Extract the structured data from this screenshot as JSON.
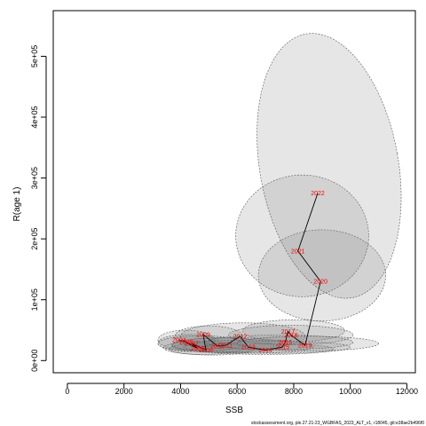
{
  "chart_data": {
    "type": "scatter",
    "title": "",
    "xlabel": "SSB",
    "ylabel": "R(age 1)",
    "xlim": [
      -500,
      12300
    ],
    "ylim": [
      -20000,
      575000
    ],
    "x_ticks": [
      0,
      2000,
      4000,
      6000,
      8000,
      10000,
      12000
    ],
    "x_tick_labels": [
      "0",
      "2000",
      "4000",
      "6000",
      "8000",
      "10000",
      "12000"
    ],
    "y_ticks": [
      0,
      100000,
      200000,
      300000,
      400000,
      500000
    ],
    "y_tick_labels": [
      "0e+00",
      "1e+05",
      "2e+05",
      "3e+05",
      "4e+05",
      "5e+05"
    ],
    "grid": false,
    "line_color": "#000000",
    "label_color": "#ff0000",
    "ellipse_fill": "#808080",
    "ellipse_stroke": "#555555",
    "points": [
      {
        "year": "2004",
        "ssb": 3950,
        "rec": 34000
      },
      {
        "year": "2005",
        "ssb": 4200,
        "rec": 30000
      },
      {
        "year": "2006",
        "ssb": 4600,
        "rec": 20000
      },
      {
        "year": "2007",
        "ssb": 4400,
        "rec": 28000
      },
      {
        "year": "2008",
        "ssb": 4900,
        "rec": 17000
      },
      {
        "year": "2009",
        "ssb": 4800,
        "rec": 43000
      },
      {
        "year": "2010",
        "ssb": 5300,
        "rec": 24000
      },
      {
        "year": "2011",
        "ssb": 5600,
        "rec": 25000
      },
      {
        "year": "2012",
        "ssb": 6100,
        "rec": 40000
      },
      {
        "year": "2013",
        "ssb": 6400,
        "rec": 22000
      },
      {
        "year": "2014",
        "ssb": 7000,
        "rec": 17000
      },
      {
        "year": "2015",
        "ssb": 7600,
        "rec": 22000
      },
      {
        "year": "2016",
        "ssb": 7700,
        "rec": 30000
      },
      {
        "year": "2017",
        "ssb": 7800,
        "rec": 48000
      },
      {
        "year": "2018",
        "ssb": 7900,
        "rec": 42000
      },
      {
        "year": "2019",
        "ssb": 8400,
        "rec": 25000
      },
      {
        "year": "2020",
        "ssb": 8950,
        "rec": 130000
      },
      {
        "year": "2021",
        "ssb": 8150,
        "rec": 180000
      },
      {
        "year": "2022",
        "ssb": 8850,
        "rec": 275000
      }
    ],
    "uncertainty_ellipses": [
      {
        "year": "2004",
        "cx": 4200,
        "cy": 34000,
        "rx": 1000,
        "ry": 16000,
        "tilt": 0
      },
      {
        "year": "2005",
        "cx": 4300,
        "cy": 29000,
        "rx": 1100,
        "ry": 14000,
        "tilt": 0
      },
      {
        "year": "2006",
        "cx": 4800,
        "cy": 21000,
        "rx": 1400,
        "ry": 11000,
        "tilt": 0
      },
      {
        "year": "2007",
        "cx": 4700,
        "cy": 28000,
        "rx": 1500,
        "ry": 13000,
        "tilt": 0
      },
      {
        "year": "2008",
        "cx": 5100,
        "cy": 19000,
        "rx": 1500,
        "ry": 10000,
        "tilt": 0
      },
      {
        "year": "2009",
        "cx": 5000,
        "cy": 40000,
        "rx": 1200,
        "ry": 17000,
        "tilt": 0
      },
      {
        "year": "2010",
        "cx": 5500,
        "cy": 25000,
        "rx": 1800,
        "ry": 12000,
        "tilt": 0
      },
      {
        "year": "2011",
        "cx": 5700,
        "cy": 26000,
        "rx": 2000,
        "ry": 12000,
        "tilt": 0
      },
      {
        "year": "2012",
        "cx": 6200,
        "cy": 40000,
        "rx": 2200,
        "ry": 22000,
        "tilt": 0
      },
      {
        "year": "2013",
        "cx": 6400,
        "cy": 23000,
        "rx": 2300,
        "ry": 11000,
        "tilt": 0
      },
      {
        "year": "2014",
        "cx": 7000,
        "cy": 19000,
        "rx": 2400,
        "ry": 9000,
        "tilt": 0
      },
      {
        "year": "2015",
        "cx": 7400,
        "cy": 22000,
        "rx": 2600,
        "ry": 10000,
        "tilt": 0
      },
      {
        "year": "2016",
        "cx": 7500,
        "cy": 30000,
        "rx": 2600,
        "ry": 12000,
        "tilt": 0
      },
      {
        "year": "2017",
        "cx": 8000,
        "cy": 49000,
        "rx": 1800,
        "ry": 18000,
        "tilt": 0
      },
      {
        "year": "2018",
        "cx": 7900,
        "cy": 42000,
        "rx": 2200,
        "ry": 16000,
        "tilt": 0
      },
      {
        "year": "2019",
        "cx": 8500,
        "cy": 28000,
        "rx": 2500,
        "ry": 12000,
        "tilt": 0
      },
      {
        "year": "2020",
        "cx": 9000,
        "cy": 140000,
        "rx": 2250,
        "ry": 75000,
        "tilt": 0
      },
      {
        "year": "2021",
        "cx": 8300,
        "cy": 205000,
        "rx": 2350,
        "ry": 100000,
        "tilt": 0
      },
      {
        "year": "2022",
        "cx": 9250,
        "cy": 320000,
        "rx": 2450,
        "ry": 220000,
        "tilt": -10
      }
    ]
  },
  "footer": {
    "caption": "stockassessment.org, ple.27.21-23_WGBFAS_2023_ALT_v1, r18045, git:e38ae2b496f0"
  }
}
